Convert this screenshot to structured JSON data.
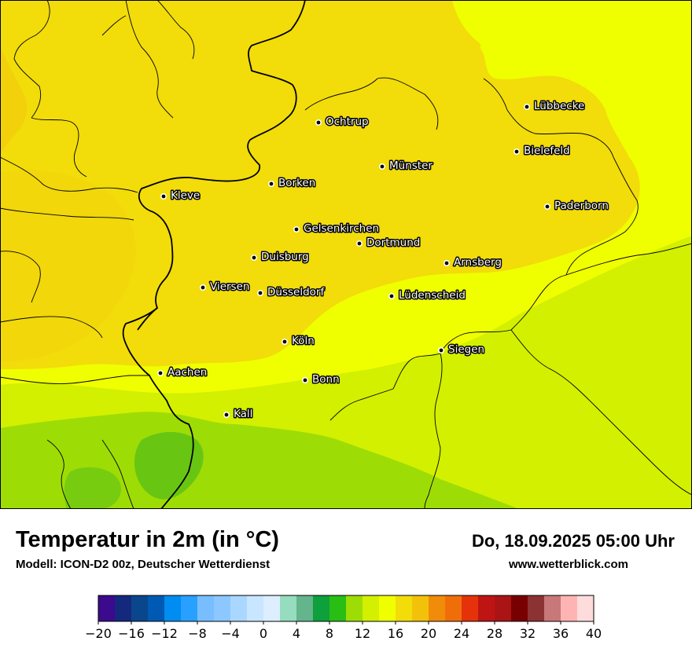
{
  "map": {
    "colors": {
      "c8_12": "#9edc06",
      "c12_14": "#d2f000",
      "c14_16": "#f0ff00",
      "c16_18": "#f2dc0a",
      "c18_20": "#f2c20a",
      "green_4_8": "#3cb41e"
    },
    "cities": [
      {
        "name": "Lübbecke",
        "icon": "city-dot-icon"
      },
      {
        "name": "Ochtrup",
        "icon": "city-dot-icon"
      },
      {
        "name": "Bielefeld",
        "icon": "city-dot-icon"
      },
      {
        "name": "Münster",
        "icon": "city-dot-icon"
      },
      {
        "name": "Borken",
        "icon": "city-dot-icon"
      },
      {
        "name": "Kleve",
        "icon": "city-dot-icon"
      },
      {
        "name": "Paderborn",
        "icon": "city-dot-icon"
      },
      {
        "name": "Gelsenkirchen",
        "icon": "city-dot-icon"
      },
      {
        "name": "Dortmund",
        "icon": "city-dot-icon"
      },
      {
        "name": "Duisburg",
        "icon": "city-dot-icon"
      },
      {
        "name": "Arnsberg",
        "icon": "city-dot-icon"
      },
      {
        "name": "Viersen",
        "icon": "city-dot-icon"
      },
      {
        "name": "Düsseldorf",
        "icon": "city-dot-icon"
      },
      {
        "name": "Lüdenscheid",
        "icon": "city-dot-icon"
      },
      {
        "name": "Köln",
        "icon": "city-dot-icon"
      },
      {
        "name": "Siegen",
        "icon": "city-dot-icon"
      },
      {
        "name": "Aachen",
        "icon": "city-dot-icon"
      },
      {
        "name": "Bonn",
        "icon": "city-dot-icon"
      },
      {
        "name": "Kall",
        "icon": "city-dot-icon"
      }
    ]
  },
  "header": {
    "title": "Temperatur in 2m (in °C)",
    "subtitle": "Modell: ICON-D2 00z, Deutscher Wetterdienst",
    "datetime": "Do, 18.09.2025 05:00 Uhr",
    "website": "www.wetterblick.com"
  },
  "legend": {
    "min": -20,
    "max": 40,
    "step": 2,
    "tick_labels": [
      "−20",
      "−16",
      "−12",
      "−8",
      "−4",
      "0",
      "4",
      "8",
      "12",
      "16",
      "20",
      "24",
      "28",
      "32",
      "36",
      "40"
    ],
    "colors": [
      "#3c0a8c",
      "#14287d",
      "#0a468c",
      "#005ab4",
      "#008cf0",
      "#28a0ff",
      "#78beff",
      "#8cc8ff",
      "#aad7ff",
      "#c8e6ff",
      "#dceeff",
      "#96dcbe",
      "#64b48c",
      "#0ea03c",
      "#28be14",
      "#9edc06",
      "#d2f000",
      "#f0ff00",
      "#f2dc0a",
      "#f2c20a",
      "#f08c0a",
      "#f06e0a",
      "#e6320a",
      "#be1414",
      "#aa1414",
      "#780000",
      "#8c3232",
      "#c87878",
      "#ffb4b4",
      "#ffdcdc"
    ]
  }
}
